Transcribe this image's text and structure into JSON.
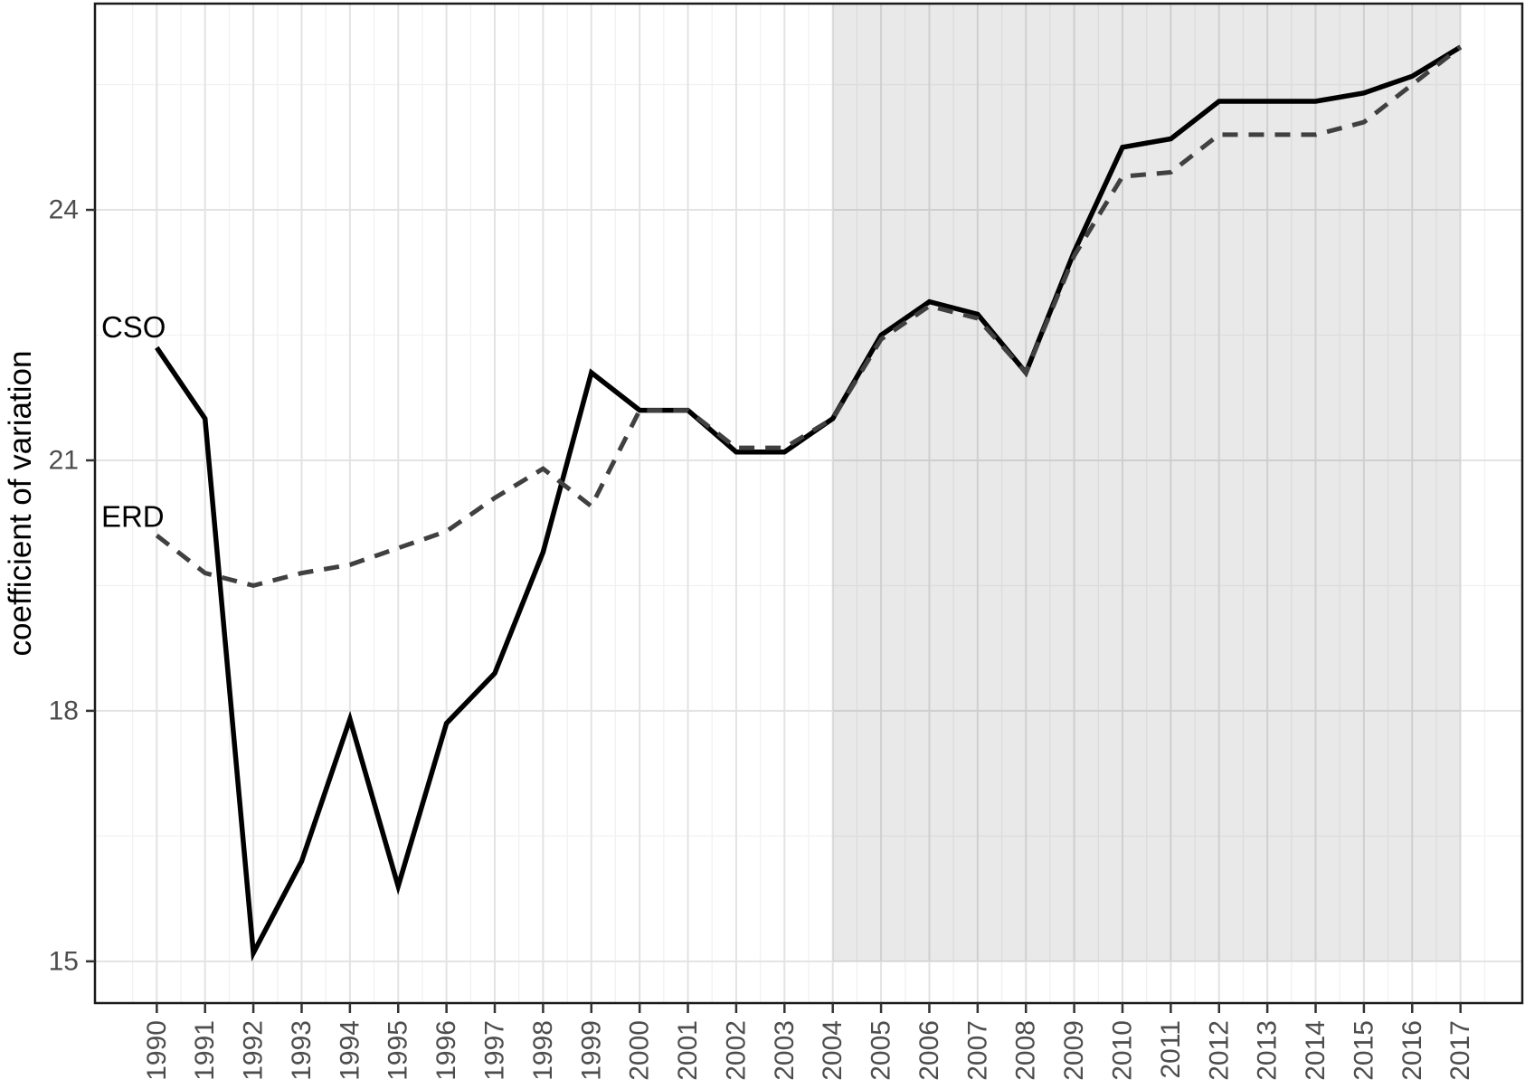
{
  "chart_data": {
    "type": "line",
    "title": "",
    "xlabel": "",
    "ylabel": "coefficient of variation",
    "x": [
      1990,
      1991,
      1992,
      1993,
      1994,
      1995,
      1996,
      1997,
      1998,
      1999,
      2000,
      2001,
      2002,
      2003,
      2004,
      2005,
      2006,
      2007,
      2008,
      2009,
      2010,
      2011,
      2012,
      2013,
      2014,
      2015,
      2016,
      2017
    ],
    "series": [
      {
        "name": "CSO",
        "style": "solid",
        "color": "#000000",
        "values": [
          22.35,
          21.5,
          15.1,
          16.2,
          17.9,
          15.9,
          17.85,
          18.45,
          19.9,
          22.05,
          21.6,
          21.6,
          21.1,
          21.1,
          21.5,
          22.5,
          22.9,
          22.75,
          22.05,
          23.5,
          24.75,
          24.85,
          25.3,
          25.3,
          25.3,
          25.4,
          25.6,
          25.95
        ]
      },
      {
        "name": "ERD",
        "style": "dashed",
        "color": "#404040",
        "values": [
          20.1,
          19.65,
          19.5,
          19.65,
          19.75,
          19.95,
          20.15,
          20.55,
          20.9,
          20.45,
          21.6,
          21.6,
          21.15,
          21.15,
          21.5,
          22.45,
          22.85,
          22.7,
          22.05,
          23.45,
          24.4,
          24.45,
          24.9,
          24.9,
          24.9,
          25.05,
          25.5,
          25.95
        ]
      }
    ],
    "series_labels": [
      {
        "text": "CSO",
        "x": 1988.85,
        "y": 22.6
      },
      {
        "text": "ERD",
        "x": 1988.85,
        "y": 20.33
      }
    ],
    "y_ticks": [
      15,
      18,
      21,
      24
    ],
    "y_minor_ticks": [
      16.5,
      19.5,
      22.5,
      25.5
    ],
    "x_tick_labels": [
      "1990",
      "1991",
      "1992",
      "1993",
      "1994",
      "1995",
      "1996",
      "1997",
      "1998",
      "1999",
      "2000",
      "2001",
      "2002",
      "2003",
      "2004",
      "2005",
      "2006",
      "2007",
      "2008",
      "2009",
      "2010",
      "2011",
      "2012",
      "2013",
      "2014",
      "2015",
      "2016",
      "2017"
    ],
    "ylim": [
      14.5,
      26.47
    ],
    "xlim": [
      1988.72,
      2018.28
    ],
    "grid": {
      "major_color": "#e3e3e3",
      "minor_color": "#f1f1f1"
    },
    "shaded_region": {
      "x_start": 2004,
      "x_end": 2017,
      "y_start": 15,
      "color": "rgba(0,0,0,0.085)"
    },
    "axis": {
      "border_color": "#1a1a1a",
      "tick_color": "#333333",
      "tick_label_color": "#4d4d4d",
      "title_color": "#000000"
    },
    "legend_position": "annotated-on-plot"
  }
}
